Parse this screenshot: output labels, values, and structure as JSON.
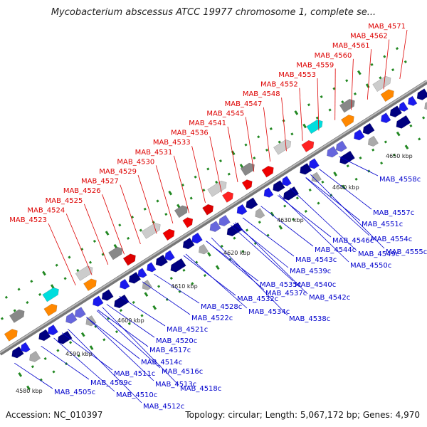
{
  "title": "Mycobacterium abscessus ATCC 19977 chromosome 1, complete se...",
  "footer": {
    "accession": "Accession: NC_010397",
    "topology": "Topology: circular; Length: 5,067,172 bp; Genes: 4,970"
  },
  "colors": {
    "forward_label": "#dd0000",
    "reverse_label": "#0000cc",
    "backbone": "#999999",
    "tick": "#228822"
  },
  "kbp_marks": [
    "4580 kbp",
    "4590 kbp",
    "4600 kbp",
    "4610 kbp",
    "4620 kbp",
    "4630 kbp",
    "4640 kbp",
    "4650 kbp"
  ],
  "forward_labels": [
    "MAB_4571",
    "MAB_4562",
    "MAB_4561",
    "MAB_4560",
    "MAB_4559",
    "MAB_4553",
    "MAB_4552",
    "MAB_4548",
    "MAB_4547",
    "MAB_4545",
    "MAB_4541",
    "MAB_4536",
    "MAB_4533",
    "MAB_4531",
    "MAB_4530",
    "MAB_4529",
    "MAB_4527",
    "MAB_4526",
    "MAB_4525",
    "MAB_4524",
    "MAB_4523"
  ],
  "reverse_labels": [
    "MAB_4558c",
    "MAB_4557c",
    "MAB_4551c",
    "MAB_4554c",
    "MAB_4555c",
    "MAB_4546c",
    "MAB_4549c",
    "MAB_4544c",
    "MAB_4550c",
    "MAB_4543c",
    "MAB_4539c",
    "MAB_4540c",
    "MAB_4537c",
    "MAB_4542c",
    "MAB_4535c",
    "MAB_4532c",
    "MAB_4534c",
    "MAB_4528c",
    "MAB_4538c",
    "MAB_4522c",
    "MAB_4521c",
    "MAB_4520c",
    "MAB_4517c",
    "MAB_4514c",
    "MAB_4516c",
    "MAB_4511c",
    "MAB_4513c",
    "MAB_4518c",
    "MAB_4509c",
    "MAB_4505c",
    "MAB_4510c",
    "MAB_4512c"
  ]
}
